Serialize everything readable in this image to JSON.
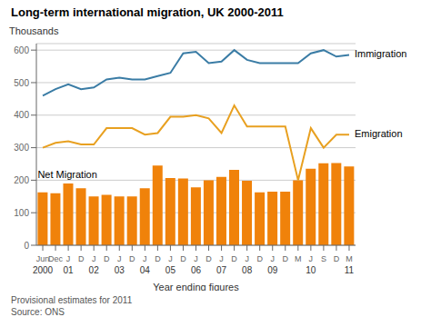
{
  "chart_data": {
    "type": "bar",
    "title": "Long-term international migration, UK 2000-2011",
    "ylabel": "Thousands",
    "xlabel": "Year ending figures",
    "footnotes": [
      "Provisional estimates for 2011",
      "Source: ONS"
    ],
    "categories": [
      "Jun",
      "Dec",
      "J",
      "D",
      "J",
      "D",
      "J",
      "D",
      "J",
      "D",
      "J",
      "D",
      "J",
      "D",
      "J",
      "D",
      "J",
      "D",
      "J",
      "D",
      "M",
      "J",
      "S",
      "D",
      "M"
    ],
    "year_labels": [
      "2000",
      null,
      "01",
      null,
      "02",
      null,
      "03",
      null,
      "04",
      null,
      "05",
      null,
      "06",
      null,
      "07",
      null,
      "08",
      null,
      "09",
      null,
      null,
      "10",
      null,
      null,
      "11"
    ],
    "ylim": [
      0,
      620
    ],
    "yticks": [
      0,
      100,
      200,
      300,
      400,
      500,
      600
    ],
    "grid": true,
    "series": [
      {
        "name": "Net Migration",
        "type": "bar",
        "color": "#f0820a",
        "values": [
          163,
          160,
          190,
          175,
          150,
          155,
          150,
          150,
          175,
          245,
          207,
          205,
          178,
          200,
          210,
          232,
          198,
          163,
          165,
          165,
          200,
          235,
          252,
          253,
          242
        ]
      },
      {
        "name": "Immigration",
        "type": "line",
        "color": "#3a7ca5",
        "values": [
          460,
          480,
          495,
          480,
          485,
          510,
          515,
          510,
          510,
          520,
          530,
          590,
          595,
          560,
          565,
          600,
          570,
          560,
          560,
          560,
          560,
          590,
          600,
          580,
          585
        ]
      },
      {
        "name": "Emigration",
        "type": "line",
        "color": "#e8a020",
        "values": [
          300,
          315,
          320,
          310,
          310,
          360,
          360,
          360,
          340,
          345,
          395,
          395,
          400,
          390,
          345,
          430,
          365,
          365,
          365,
          365,
          200,
          360,
          300,
          340,
          340
        ]
      }
    ]
  }
}
